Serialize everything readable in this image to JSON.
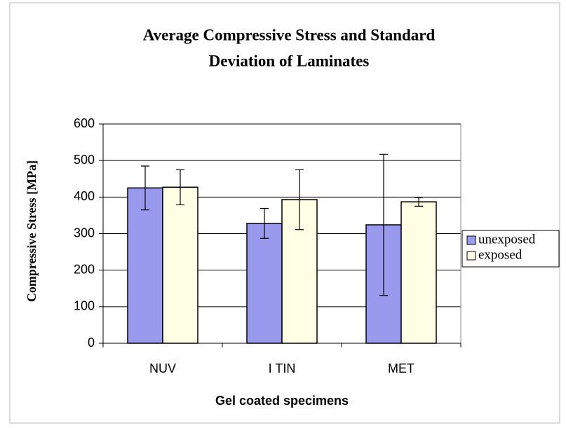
{
  "chart_data": {
    "type": "bar",
    "title": [
      "Average Compressive Stress and Standard",
      "Deviation of Laminates"
    ],
    "x_label": "Gel coated specimens",
    "y_label": "Compressive Stress [MPa]",
    "categories": [
      "NUV",
      "I TIN",
      "MET"
    ],
    "series": [
      {
        "name": "unexposed",
        "color": "#9999ee",
        "values": [
          425,
          328,
          324
        ],
        "errors": [
          60,
          41,
          193
        ]
      },
      {
        "name": "exposed",
        "color": "#ffffe6",
        "values": [
          427,
          393,
          387
        ],
        "errors": [
          48,
          82,
          12
        ]
      }
    ],
    "ylim": [
      0,
      600
    ],
    "yticks": [
      0,
      100,
      200,
      300,
      400,
      500,
      600
    ],
    "grid": true,
    "legend": "right"
  }
}
